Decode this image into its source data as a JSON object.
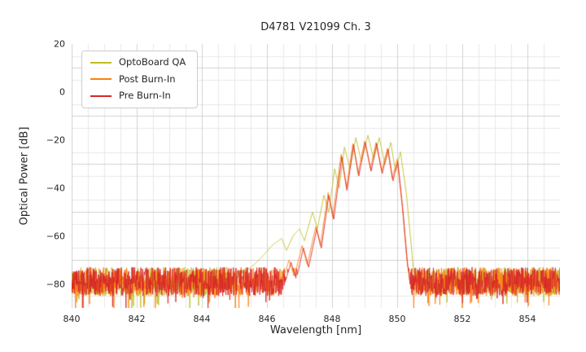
{
  "figure": {
    "background": "#ffffff",
    "text_color": "#262626"
  },
  "chart_data": {
    "type": "line",
    "title": "D4781 V21099 Ch. 3",
    "xlabel": "Wavelength [nm]",
    "ylabel": "Optical Power [dB]",
    "xlim": [
      840,
      855
    ],
    "ylim": [
      -90,
      20
    ],
    "x_ticks": [
      840,
      842,
      844,
      846,
      848,
      850,
      852,
      854
    ],
    "y_ticks": [
      20,
      0,
      -20,
      -40,
      -60,
      -80
    ],
    "grid": {
      "on": true,
      "major_color": "#d2d2d2",
      "minor_color": "#e8e8e8",
      "x_major_step": 2,
      "x_minor_step": 0.5,
      "y_major_step": 20,
      "y_minor_step": 5
    },
    "legend": {
      "position": "upper-left"
    },
    "noise": {
      "base": -79,
      "amplitude": 6,
      "spike_prob": 0.05,
      "spike_extra": 6,
      "step": 0.01
    },
    "series": [
      {
        "name": "OptoBoard QA",
        "color": "#bcbd22",
        "seed": 11,
        "envelope": [
          [
            844.8,
            -82
          ],
          [
            845.2,
            -76
          ],
          [
            845.6,
            -72
          ],
          [
            845.9,
            -68
          ],
          [
            846.15,
            -64
          ],
          [
            846.45,
            -61
          ],
          [
            846.6,
            -66
          ],
          [
            846.8,
            -60
          ],
          [
            847.0,
            -57
          ],
          [
            847.15,
            -62
          ],
          [
            847.4,
            -50
          ],
          [
            847.55,
            -57
          ],
          [
            847.75,
            -43
          ],
          [
            847.9,
            -50
          ],
          [
            848.08,
            -32
          ],
          [
            848.22,
            -40
          ],
          [
            848.38,
            -23
          ],
          [
            848.55,
            -32
          ],
          [
            848.73,
            -19
          ],
          [
            848.9,
            -29
          ],
          [
            849.1,
            -18
          ],
          [
            849.28,
            -28
          ],
          [
            849.45,
            -19
          ],
          [
            849.62,
            -30
          ],
          [
            849.8,
            -21
          ],
          [
            849.95,
            -33
          ],
          [
            850.1,
            -25
          ],
          [
            850.28,
            -42
          ],
          [
            850.42,
            -62
          ],
          [
            850.55,
            -82
          ]
        ]
      },
      {
        "name": "Post Burn-In",
        "color": "#ff7f0e",
        "seed": 22,
        "envelope": [
          [
            846.4,
            -82
          ],
          [
            846.68,
            -70
          ],
          [
            846.84,
            -77
          ],
          [
            847.08,
            -64
          ],
          [
            847.24,
            -72
          ],
          [
            847.5,
            -56
          ],
          [
            847.64,
            -64
          ],
          [
            847.88,
            -42
          ],
          [
            848.02,
            -52
          ],
          [
            848.28,
            -26
          ],
          [
            848.44,
            -40
          ],
          [
            848.64,
            -21.5
          ],
          [
            848.8,
            -34
          ],
          [
            849.0,
            -20.5
          ],
          [
            849.18,
            -32
          ],
          [
            849.35,
            -21
          ],
          [
            849.52,
            -33
          ],
          [
            849.7,
            -23.5
          ],
          [
            849.85,
            -36
          ],
          [
            850.0,
            -28
          ],
          [
            850.16,
            -48
          ],
          [
            850.3,
            -70
          ],
          [
            850.42,
            -82
          ]
        ]
      },
      {
        "name": "Pre Burn-In",
        "color": "#d62728",
        "seed": 33,
        "envelope": [
          [
            846.5,
            -82
          ],
          [
            846.74,
            -71
          ],
          [
            846.9,
            -78
          ],
          [
            847.12,
            -65
          ],
          [
            847.28,
            -73
          ],
          [
            847.53,
            -57
          ],
          [
            847.67,
            -65
          ],
          [
            847.9,
            -43
          ],
          [
            848.05,
            -53
          ],
          [
            848.3,
            -27
          ],
          [
            848.46,
            -41
          ],
          [
            848.66,
            -22
          ],
          [
            848.82,
            -35
          ],
          [
            849.02,
            -21
          ],
          [
            849.2,
            -33
          ],
          [
            849.37,
            -21.5
          ],
          [
            849.54,
            -34
          ],
          [
            849.72,
            -24
          ],
          [
            849.87,
            -37
          ],
          [
            850.02,
            -29
          ],
          [
            850.18,
            -50
          ],
          [
            850.32,
            -72
          ],
          [
            850.44,
            -84
          ]
        ]
      }
    ]
  }
}
